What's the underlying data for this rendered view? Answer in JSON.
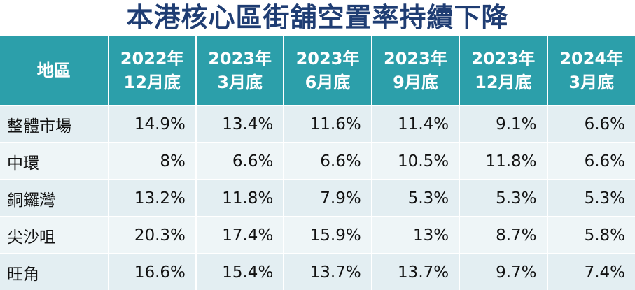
{
  "chart_data": {
    "type": "table",
    "title": "本港核心區街舖空置率持續下降",
    "columns": [
      {
        "label": "地區"
      },
      {
        "line1": "2022年",
        "line2": "12月底"
      },
      {
        "line1": "2023年",
        "line2": "3月底"
      },
      {
        "line1": "2023年",
        "line2": "6月底"
      },
      {
        "line1": "2023年",
        "line2": "9月底"
      },
      {
        "line1": "2023年",
        "line2": "12月底"
      },
      {
        "line1": "2024年",
        "line2": "3月底"
      }
    ],
    "rows": [
      {
        "region": "整體市場",
        "values": [
          "14.9%",
          "13.4%",
          "11.6%",
          "11.4%",
          "9.1%",
          "6.6%"
        ]
      },
      {
        "region": "中環",
        "values": [
          "8%",
          "6.6%",
          "6.6%",
          "10.5%",
          "11.8%",
          "6.6%"
        ]
      },
      {
        "region": "銅鑼灣",
        "values": [
          "13.2%",
          "11.8%",
          "7.9%",
          "5.3%",
          "5.3%",
          "5.3%"
        ]
      },
      {
        "region": "尖沙咀",
        "values": [
          "20.3%",
          "17.4%",
          "15.9%",
          "13%",
          "8.7%",
          "5.8%"
        ]
      },
      {
        "region": "旺角",
        "values": [
          "16.6%",
          "15.4%",
          "13.7%",
          "13.7%",
          "9.7%",
          "7.4%"
        ]
      }
    ]
  },
  "colors": {
    "title": "#1f3d73",
    "header_bg": "#2c9faa",
    "header_text": "#ffffff",
    "row_odd_bg": "#e3eef2",
    "row_even_bg": "#eef5f7"
  }
}
